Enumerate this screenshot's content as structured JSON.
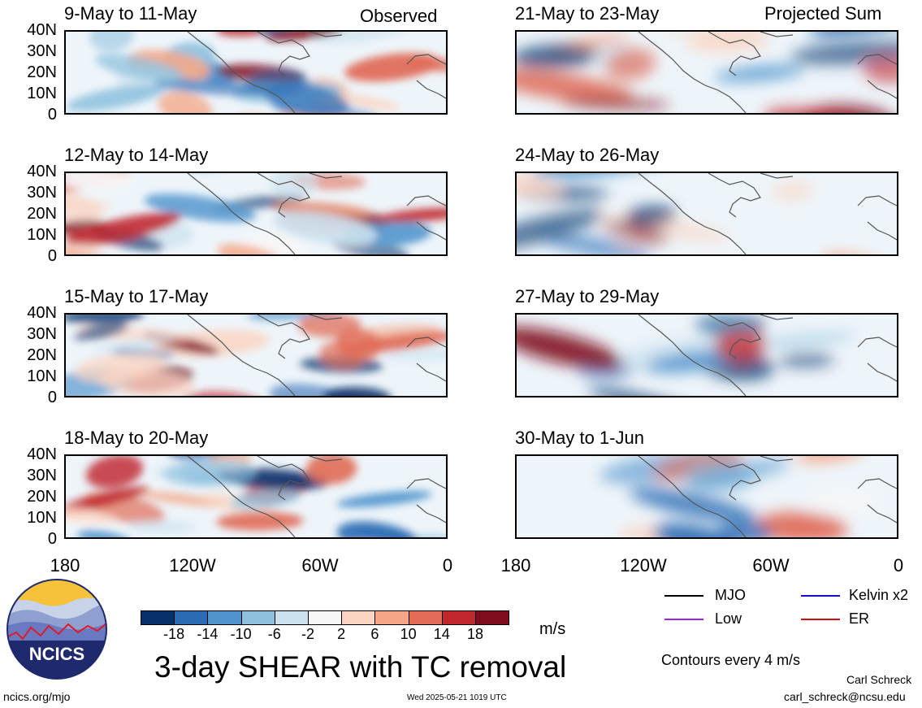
{
  "observed_label": "Observed",
  "projected_label": "Projected Sum",
  "panels_left": [
    {
      "title": "9-May to 11-May"
    },
    {
      "title": "12-May to 14-May"
    },
    {
      "title": "15-May to 17-May"
    },
    {
      "title": "18-May to 20-May"
    }
  ],
  "panels_right": [
    {
      "title": "21-May to 23-May"
    },
    {
      "title": "24-May to 26-May"
    },
    {
      "title": "27-May to 29-May"
    },
    {
      "title": "30-May to 1-Jun"
    }
  ],
  "y_ticks": [
    "40N",
    "30N",
    "20N",
    "10N",
    "0"
  ],
  "x_ticks": [
    "180",
    "120W",
    "60W",
    "0"
  ],
  "colorbar": {
    "colors": [
      "#08306b",
      "#2a6bb4",
      "#4f94cc",
      "#8fc1de",
      "#cde2ef",
      "#f7f7f7",
      "#fbd4c2",
      "#f4a686",
      "#e06c58",
      "#c0272d",
      "#800d1e"
    ],
    "labels": [
      "-18",
      "-14",
      "-10",
      "-6",
      "-2",
      "2",
      "6",
      "10",
      "14",
      "18"
    ],
    "units": "m/s"
  },
  "main_title": "3-day SHEAR with TC removal",
  "legend": {
    "items": [
      {
        "label": "MJO",
        "color": "#000000"
      },
      {
        "label": "Kelvin x2",
        "color": "#1010c8"
      },
      {
        "label": "Low",
        "color": "#a020f0"
      },
      {
        "label": "ER",
        "color": "#d01010"
      }
    ],
    "contour_note": "Contours every 4 m/s"
  },
  "logo_text": "NCICS",
  "footer": {
    "left": "ncics.org/mjo",
    "center": "Wed 2025-05-21 1019 UTC",
    "author": "Carl Schreck",
    "email": "carl_schreck@ncsu.edu"
  }
}
